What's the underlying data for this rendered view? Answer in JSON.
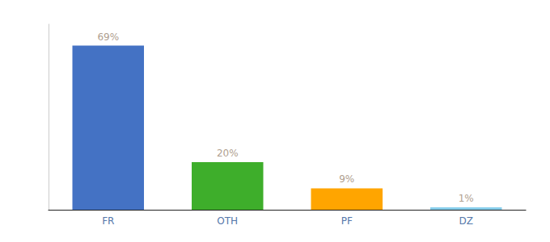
{
  "chart_data": {
    "type": "bar",
    "categories": [
      "FR",
      "OTH",
      "PF",
      "DZ"
    ],
    "values": [
      69,
      20,
      9,
      1
    ],
    "value_labels": [
      "69%",
      "20%",
      "9%",
      "1%"
    ],
    "colors": [
      "#4472C4",
      "#3EAE2B",
      "#FFA500",
      "#87CEEB"
    ],
    "ylim": [
      0,
      78
    ],
    "grid": false,
    "data_labels": true,
    "tick_labels": "x"
  }
}
